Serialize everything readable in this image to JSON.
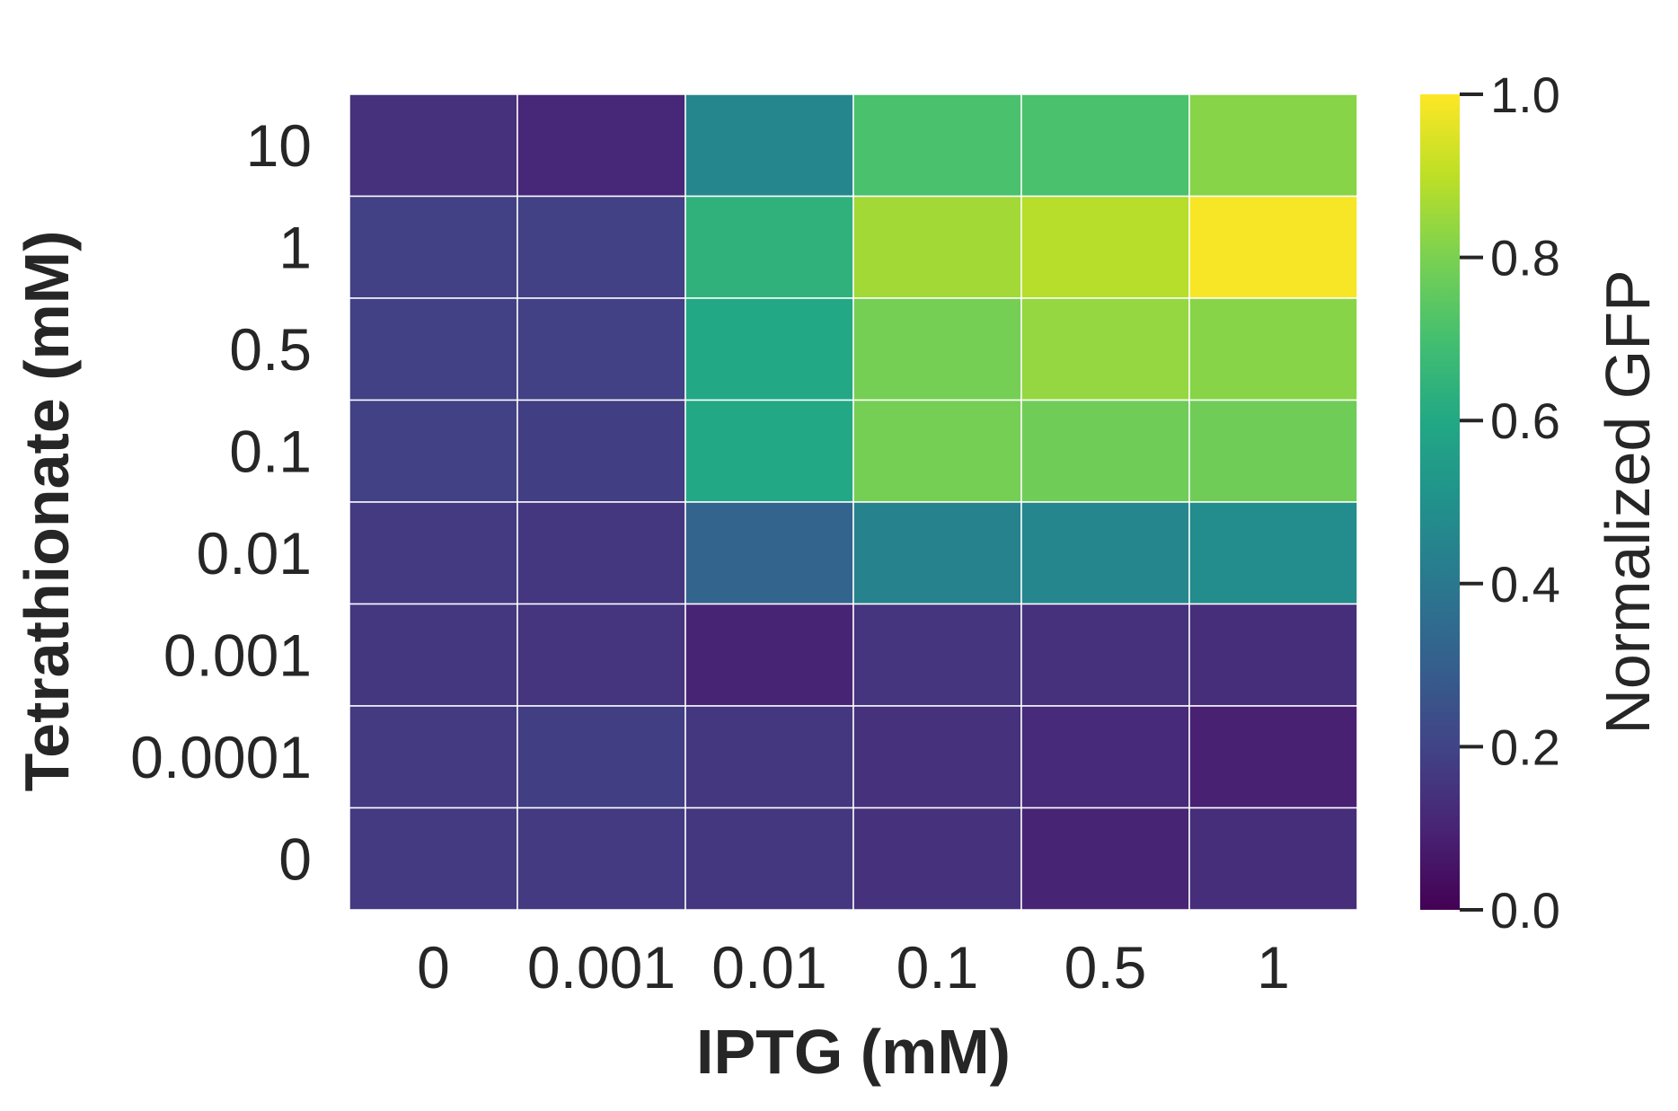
{
  "chart_data": {
    "type": "heatmap",
    "title": "",
    "xlabel": "IPTG (mM)",
    "ylabel": "Tetrathionate (mM)",
    "x_categories": [
      "0",
      "0.001",
      "0.01",
      "0.1",
      "0.5",
      "1"
    ],
    "y_categories": [
      "10",
      "1",
      "0.5",
      "0.1",
      "0.01",
      "0.001",
      "0.0001",
      "0"
    ],
    "values": [
      [
        0.14,
        0.11,
        0.46,
        0.71,
        0.71,
        0.82
      ],
      [
        0.19,
        0.19,
        0.64,
        0.86,
        0.89,
        0.99
      ],
      [
        0.19,
        0.19,
        0.6,
        0.79,
        0.84,
        0.82
      ],
      [
        0.19,
        0.18,
        0.6,
        0.79,
        0.78,
        0.78
      ],
      [
        0.17,
        0.16,
        0.32,
        0.44,
        0.46,
        0.48
      ],
      [
        0.16,
        0.15,
        0.1,
        0.15,
        0.14,
        0.13
      ],
      [
        0.17,
        0.18,
        0.16,
        0.14,
        0.12,
        0.09
      ],
      [
        0.17,
        0.17,
        0.16,
        0.14,
        0.1,
        0.13
      ]
    ],
    "colorbar": {
      "label": "Normalized GFP",
      "range": [
        0.0,
        1.0
      ],
      "ticks": [
        "0.0",
        "0.2",
        "0.4",
        "0.6",
        "0.8",
        "1.0"
      ],
      "colormap": "viridis"
    },
    "grid": false
  }
}
